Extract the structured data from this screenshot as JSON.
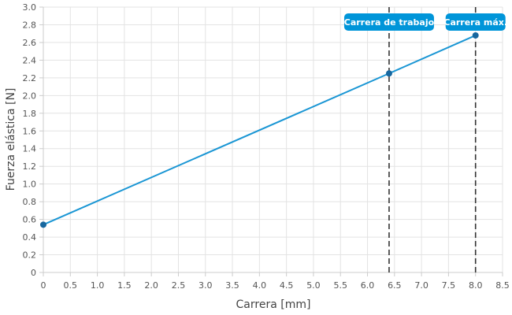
{
  "chart_data": {
    "type": "line",
    "xlabel": "Carrera [mm]",
    "ylabel": "Fuerza elástica [N]",
    "xlim": [
      0,
      8.5
    ],
    "ylim": [
      0,
      3.0
    ],
    "x_ticks": [
      "0",
      "0.5",
      "1.0",
      "1.5",
      "2.0",
      "2.5",
      "3.0",
      "3.5",
      "4.0",
      "4.5",
      "5.0",
      "5.5",
      "6.0",
      "6.5",
      "7.0",
      "7.5",
      "8.0",
      "8.5"
    ],
    "y_ticks": [
      "0",
      "0.2",
      "0.4",
      "0.6",
      "0.8",
      "1.0",
      "1.2",
      "1.4",
      "1.6",
      "1.8",
      "2.0",
      "2.2",
      "2.4",
      "2.6",
      "2.8",
      "3.0"
    ],
    "grid": true,
    "series": [
      {
        "x": [
          0,
          6.4,
          8.0
        ],
        "y": [
          0.54,
          2.25,
          2.68
        ],
        "color": "#1a96d4"
      }
    ],
    "markers": [
      {
        "label": "Carrera de trabajo",
        "x": 6.4,
        "y": 2.25
      },
      {
        "label": "Carrera máx.",
        "x": 8.0,
        "y": 2.68
      }
    ],
    "callout_color": "#0095d9",
    "marker_color": "#17679f"
  }
}
